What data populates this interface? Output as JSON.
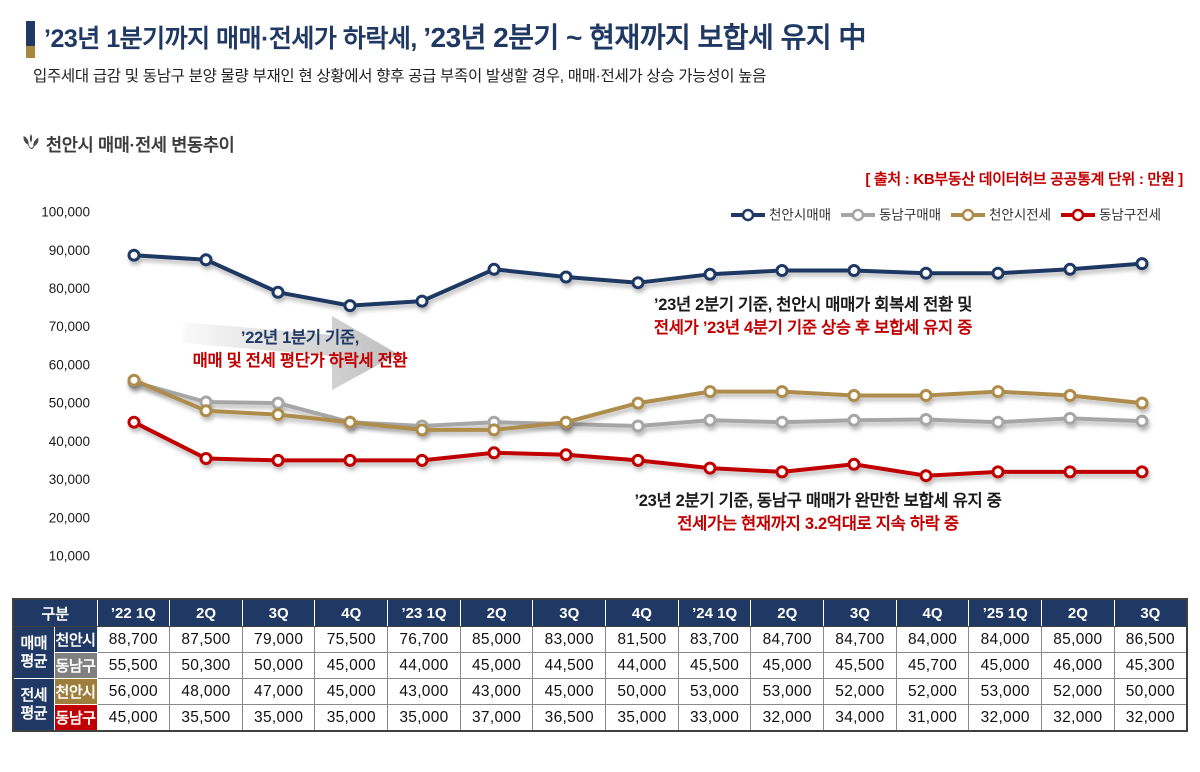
{
  "header": {
    "title_regular": "’23년 1분기까지 매매·전세가 하락세, ",
    "title_bold": "’23년 2분기 ~ 현재까지 보합세 유지 中",
    "subtitle": "입주세대 급감 및 동남구 분양 물량 부재인 현 상황에서 향후 공급 부족이 발생할 경우, 매매·전세가 상승 가능성이 높음"
  },
  "section_title": "천안시 매매·전세 변동추이",
  "source_note": "[ 출처 : KB부동산 데이터허브 공공통계 단위 : 만원 ]",
  "annotations": {
    "a1": {
      "line1": "’22년 1분기 기준,",
      "line2": "매매 및 전세 평단가 하락세 전환"
    },
    "a2": {
      "line1": "’23년 2분기 기준, 천안시 매매가 회복세 전환 및",
      "line2": "전세가 ’23년 4분기 기준 상승 후 보합세 유지 중"
    },
    "a3": {
      "line1": "’23년 2분기 기준, 동남구 매매가 완만한 보합세 유지 중",
      "line2": "전세가는 현재까지 3.2억대로 지속 하락 중"
    }
  },
  "colors": {
    "navy": "#1F3864",
    "gray_line": "#A6A6A6",
    "gold_line": "#AE8C4B",
    "red": "#C00000",
    "gray_cell": "#808080",
    "gold_cell": "#9E7E3C",
    "arrow_gray": "#C6C6C6"
  },
  "chart_data": {
    "type": "line",
    "title": "천안시 매매·전세 변동추이",
    "unit": "만원",
    "categories": [
      "’22 1Q",
      "2Q",
      "3Q",
      "4Q",
      "’23 1Q",
      "2Q",
      "3Q",
      "4Q",
      "’24 1Q",
      "2Q",
      "3Q",
      "4Q",
      "’25 1Q",
      "2Q",
      "3Q"
    ],
    "series": [
      {
        "name": "천안시매매",
        "color": "#1F3864",
        "values": [
          88700,
          87500,
          79000,
          75500,
          76700,
          85000,
          83000,
          81500,
          83700,
          84700,
          84700,
          84000,
          84000,
          85000,
          86500
        ]
      },
      {
        "name": "동남구매매",
        "color": "#A6A6A6",
        "values": [
          55500,
          50300,
          50000,
          45000,
          44000,
          45000,
          44500,
          44000,
          45500,
          45000,
          45500,
          45700,
          45000,
          46000,
          45300
        ]
      },
      {
        "name": "천안시전세",
        "color": "#AE8C4B",
        "values": [
          56000,
          48000,
          47000,
          45000,
          43000,
          43000,
          45000,
          50000,
          53000,
          53000,
          52000,
          52000,
          53000,
          52000,
          50000
        ]
      },
      {
        "name": "동남구전세",
        "color": "#C00000",
        "values": [
          45000,
          35500,
          35000,
          35000,
          35000,
          37000,
          36500,
          35000,
          33000,
          32000,
          34000,
          31000,
          32000,
          32000,
          32000
        ]
      }
    ],
    "ylim": [
      10000,
      100000
    ],
    "yticks": [
      100000,
      90000,
      80000,
      70000,
      60000,
      50000,
      40000,
      30000,
      20000,
      10000
    ],
    "grid": false,
    "legend_position": "top-right"
  },
  "table": {
    "corner_label": "구분",
    "col_headers": [
      "’22 1Q",
      "2Q",
      "3Q",
      "4Q",
      "’23 1Q",
      "2Q",
      "3Q",
      "4Q",
      "’24 1Q",
      "2Q",
      "3Q",
      "4Q",
      "’25 1Q",
      "2Q",
      "3Q"
    ],
    "row_groups": [
      {
        "label": "매매\n평균",
        "rows": [
          {
            "label": "천안시",
            "bg": "#1F3864",
            "series": 0
          },
          {
            "label": "동남구",
            "bg": "#808080",
            "series": 1
          }
        ]
      },
      {
        "label": "전세\n평균",
        "rows": [
          {
            "label": "천안시",
            "bg": "#9E7E3C",
            "series": 2
          },
          {
            "label": "동남구",
            "bg": "#C00000",
            "series": 3
          }
        ]
      }
    ]
  }
}
